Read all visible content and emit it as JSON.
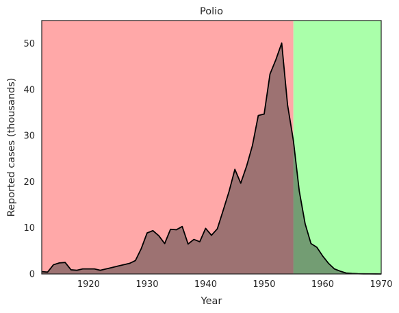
{
  "chart_data": {
    "type": "area",
    "title": "Polio",
    "xlabel": "Year",
    "ylabel": "Reported cases (thousands)",
    "xlim": [
      1912,
      1970
    ],
    "ylim": [
      0,
      55
    ],
    "xticks": [
      1920,
      1930,
      1940,
      1950,
      1960,
      1970
    ],
    "yticks": [
      0,
      10,
      20,
      30,
      40,
      50
    ],
    "grid": false,
    "regions": [
      {
        "from": 1912,
        "to": 1955,
        "color": "#ffa8a8"
      },
      {
        "from": 1955,
        "to": 1970,
        "color": "#aaffaa"
      }
    ],
    "line_color": "#000000",
    "fill_color": "#8b4d4d",
    "fill_alpha": 0.5,
    "series": [
      {
        "x": [
          1912,
          1913,
          1914,
          1915,
          1916,
          1917,
          1918,
          1919,
          1920,
          1921,
          1922,
          1923,
          1924,
          1925,
          1926,
          1927,
          1928,
          1929,
          1930,
          1931,
          1932,
          1933,
          1934,
          1935,
          1936,
          1937,
          1938,
          1939,
          1940,
          1941,
          1942,
          1943,
          1944,
          1945,
          1946,
          1947,
          1948,
          1949,
          1950,
          1951,
          1952,
          1953,
          1954,
          1955,
          1956,
          1957,
          1958,
          1959,
          1960,
          1961,
          1962,
          1963,
          1964,
          1965,
          1966,
          1967,
          1968,
          1969,
          1970
        ],
        "y": [
          0.5,
          0.4,
          2.0,
          2.4,
          2.5,
          0.9,
          0.8,
          1.1,
          1.1,
          1.1,
          0.8,
          1.1,
          1.4,
          1.7,
          2.0,
          2.3,
          2.9,
          5.5,
          8.9,
          9.4,
          8.3,
          6.6,
          9.7,
          9.6,
          10.3,
          6.5,
          7.5,
          7.0,
          9.9,
          8.4,
          9.8,
          13.8,
          17.9,
          22.7,
          19.7,
          23.4,
          27.9,
          34.4,
          34.7,
          43.4,
          46.5,
          50.1,
          36.7,
          28.9,
          18.0,
          10.9,
          6.6,
          5.8,
          3.9,
          2.3,
          1.1,
          0.6,
          0.2,
          0.1,
          0.05,
          0.03,
          0.02,
          0.01,
          0.0
        ]
      }
    ]
  }
}
